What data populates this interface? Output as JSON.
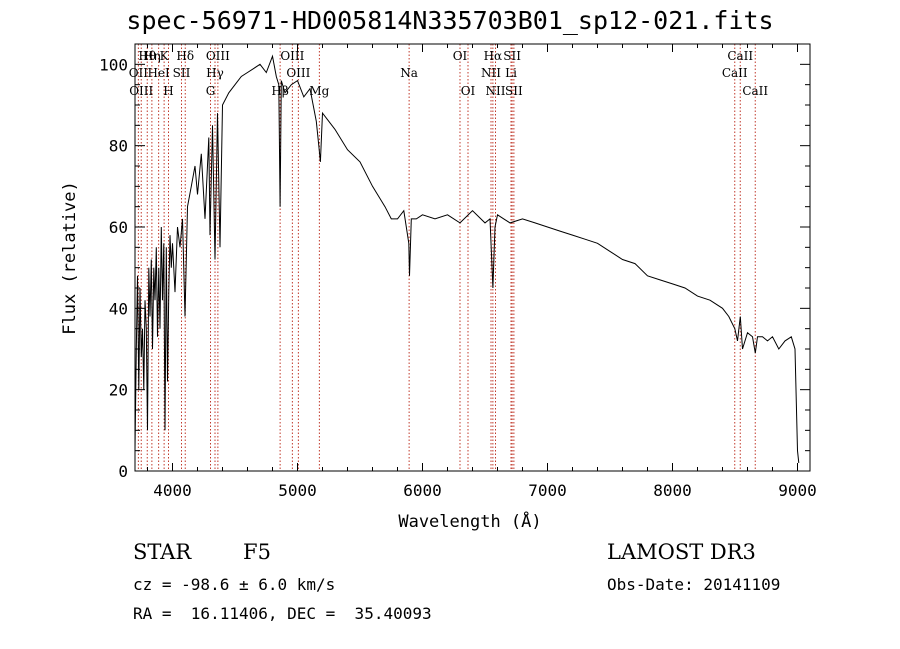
{
  "title": "spec-56971-HD005814N335703B01_sp12-021.fits",
  "info": {
    "class": "STAR",
    "subclass": "F5",
    "cz": "cz = -98.6 ± 6.0 km/s",
    "radec": "RA =  16.11406, DEC =  35.40093",
    "survey": "LAMOST DR3",
    "obsdate": "Obs-Date: 20141109"
  },
  "chart_data": {
    "type": "line",
    "title": "spec-56971-HD005814N335703B01_sp12-021.fits",
    "xlabel": "Wavelength (Å)",
    "ylabel": "Flux (relative)",
    "xlim": [
      3700,
      9100
    ],
    "ylim": [
      0,
      105
    ],
    "xticks": [
      4000,
      5000,
      6000,
      7000,
      8000,
      9000
    ],
    "yticks": [
      0,
      20,
      40,
      60,
      80,
      100
    ],
    "grid": false,
    "series": [
      {
        "name": "",
        "x": [
          3700,
          3710,
          3720,
          3730,
          3740,
          3750,
          3760,
          3770,
          3780,
          3790,
          3800,
          3810,
          3820,
          3830,
          3840,
          3850,
          3860,
          3870,
          3880,
          3890,
          3900,
          3910,
          3920,
          3930,
          3940,
          3950,
          3960,
          3970,
          3980,
          3990,
          4000,
          4020,
          4040,
          4060,
          4080,
          4100,
          4120,
          4150,
          4180,
          4200,
          4230,
          4260,
          4290,
          4300,
          4320,
          4340,
          4360,
          4380,
          4400,
          4450,
          4500,
          4550,
          4600,
          4650,
          4700,
          4750,
          4800,
          4830,
          4850,
          4861,
          4870,
          4900,
          4950,
          5000,
          5050,
          5100,
          5150,
          5170,
          5183,
          5200,
          5250,
          5300,
          5400,
          5500,
          5600,
          5700,
          5750,
          5800,
          5850,
          5890,
          5896,
          5910,
          5950,
          6000,
          6100,
          6200,
          6300,
          6400,
          6500,
          6540,
          6563,
          6580,
          6600,
          6650,
          6700,
          6800,
          6900,
          7000,
          7100,
          7200,
          7300,
          7400,
          7500,
          7600,
          7700,
          7800,
          7900,
          8000,
          8100,
          8200,
          8300,
          8400,
          8450,
          8498,
          8520,
          8542,
          8560,
          8600,
          8640,
          8662,
          8680,
          8720,
          8760,
          8800,
          8850,
          8900,
          8950,
          8980,
          9000,
          9010
        ],
        "y": [
          5,
          30,
          48,
          20,
          45,
          28,
          35,
          20,
          42,
          35,
          10,
          50,
          38,
          52,
          30,
          50,
          42,
          55,
          33,
          50,
          35,
          60,
          42,
          56,
          10,
          55,
          22,
          44,
          58,
          50,
          56,
          44,
          60,
          55,
          62,
          38,
          65,
          70,
          75,
          68,
          78,
          62,
          82,
          58,
          85,
          52,
          88,
          55,
          90,
          93,
          95,
          97,
          98,
          99,
          100,
          98,
          102,
          97,
          95,
          65,
          96,
          93,
          95,
          96,
          92,
          94,
          86,
          80,
          76,
          88,
          86,
          84,
          79,
          76,
          70,
          65,
          62,
          62,
          64,
          56,
          48,
          62,
          62,
          63,
          62,
          63,
          61,
          64,
          61,
          62,
          45,
          60,
          63,
          62,
          61,
          62,
          61,
          60,
          59,
          58,
          57,
          56,
          54,
          52,
          51,
          48,
          47,
          46,
          45,
          43,
          42,
          40,
          38,
          35,
          32,
          38,
          30,
          34,
          33,
          29,
          33,
          33,
          32,
          33,
          30,
          32,
          33,
          30,
          5,
          2
        ]
      }
    ],
    "lines": [
      {
        "wl": 3727,
        "row": 1,
        "label": "OII"
      },
      {
        "wl": 3750,
        "row": 2,
        "label": "OIII"
      },
      {
        "wl": 3798,
        "row": 0,
        "label": "Hθ"
      },
      {
        "wl": 3835,
        "row": 0,
        "label": "Hη"
      },
      {
        "wl": 3889,
        "row": 1,
        "label": "HeI"
      },
      {
        "wl": 3933,
        "row": 0,
        "label": "K"
      },
      {
        "wl": 3968,
        "row": 2,
        "label": "H"
      },
      {
        "wl": 4072,
        "row": 1,
        "label": "SII"
      },
      {
        "wl": 4102,
        "row": 0,
        "label": "Hδ"
      },
      {
        "wl": 4304,
        "row": 2,
        "label": "G"
      },
      {
        "wl": 4340,
        "row": 1,
        "label": "Hγ"
      },
      {
        "wl": 4363,
        "row": 0,
        "label": "OIII"
      },
      {
        "wl": 4861,
        "row": 2,
        "label": "Hβ"
      },
      {
        "wl": 4959,
        "row": 0,
        "label": "OIII"
      },
      {
        "wl": 5007,
        "row": 1,
        "label": "OIII"
      },
      {
        "wl": 5175,
        "row": 2,
        "label": "Mg"
      },
      {
        "wl": 5893,
        "row": 1,
        "label": "Na"
      },
      {
        "wl": 6300,
        "row": 0,
        "label": "OI"
      },
      {
        "wl": 6364,
        "row": 2,
        "label": "OI"
      },
      {
        "wl": 6548,
        "row": 1,
        "label": "NII"
      },
      {
        "wl": 6563,
        "row": 0,
        "label": "Hα"
      },
      {
        "wl": 6584,
        "row": 2,
        "label": "NII"
      },
      {
        "wl": 6708,
        "row": 1,
        "label": "Li"
      },
      {
        "wl": 6717,
        "row": 0,
        "label": "SII"
      },
      {
        "wl": 6731,
        "row": 2,
        "label": "SII"
      },
      {
        "wl": 8498,
        "row": 1,
        "label": "CaII"
      },
      {
        "wl": 8542,
        "row": 0,
        "label": "CaII"
      },
      {
        "wl": 8662,
        "row": 2,
        "label": "CaII"
      }
    ]
  },
  "colors": {
    "marker_lines": "#c0392b",
    "spectrum": "#000000",
    "axes": "#000000"
  }
}
